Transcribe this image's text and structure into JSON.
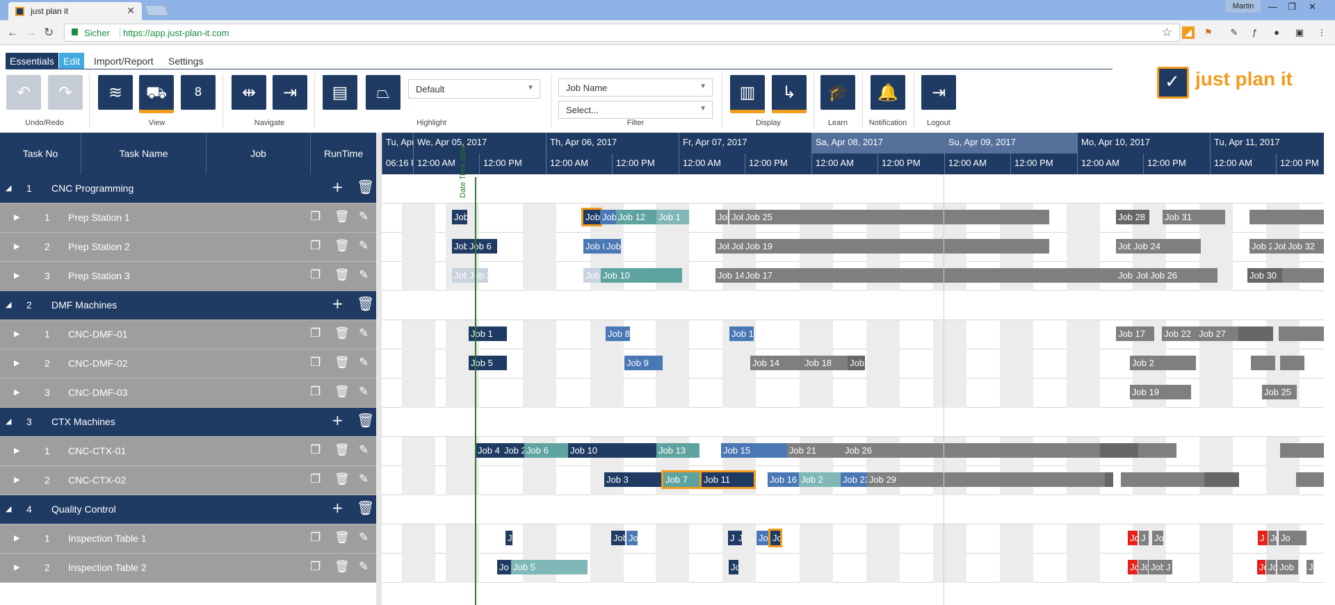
{
  "browser": {
    "tab_title": "just plan it",
    "user": "Martin",
    "secure_label": "Sicher",
    "url": "https://app.just-plan-it.com"
  },
  "menu": {
    "items": [
      "Essentials",
      "Edit",
      "Import/Report",
      "Settings"
    ]
  },
  "ribbon": {
    "groups": {
      "undo_redo": "Undo/Redo",
      "view": "View",
      "navigate": "Navigate",
      "highlight": "Highlight",
      "filter": "Filter",
      "display": "Display",
      "learn": "Learn",
      "notification": "Notification",
      "logout": "Logout"
    },
    "highlight_value": "Default",
    "filter_field": "Job Name",
    "filter_value": "Select...",
    "calendar_day": "8"
  },
  "logo": {
    "text": "just plan it"
  },
  "grid": {
    "columns": [
      "Task No",
      "Task Name",
      "Job",
      "RunTime"
    ],
    "now_label": "Date Time Now",
    "days": [
      {
        "label": "Tu, Apr"
      },
      {
        "label": "We, Apr 05, 2017"
      },
      {
        "label": "Th, Apr 06, 2017"
      },
      {
        "label": "Fr, Apr 07, 2017"
      },
      {
        "label": "Sa, Apr 08, 2017"
      },
      {
        "label": "Su, Apr 09, 2017"
      },
      {
        "label": "Mo, Apr 10, 2017"
      },
      {
        "label": "Tu, Apr 11, 2017"
      }
    ],
    "hours": [
      "06:16 P",
      "12:00 AM",
      "12:00 PM",
      "12:00 AM",
      "12:00 PM",
      "12:00 AM",
      "12:00 PM",
      "12:00 AM",
      "12:00 PM",
      "12:00 AM",
      "12:00 PM",
      "12:00 AM",
      "12:00 PM",
      "12:00 AM",
      "12:00 PM"
    ],
    "rows": [
      {
        "type": "group",
        "no": "1",
        "name": "CNC Programming"
      },
      {
        "type": "child",
        "no": "1",
        "name": "Prep Station 1"
      },
      {
        "type": "child",
        "no": "2",
        "name": "Prep Station 2"
      },
      {
        "type": "child",
        "no": "3",
        "name": "Prep Station 3"
      },
      {
        "type": "group",
        "no": "2",
        "name": "DMF Machines"
      },
      {
        "type": "child",
        "no": "1",
        "name": "CNC-DMF-01"
      },
      {
        "type": "child",
        "no": "2",
        "name": "CNC-DMF-02"
      },
      {
        "type": "child",
        "no": "3",
        "name": "CNC-DMF-03"
      },
      {
        "type": "group",
        "no": "3",
        "name": "CTX Machines"
      },
      {
        "type": "child",
        "no": "1",
        "name": "CNC-CTX-01"
      },
      {
        "type": "child",
        "no": "2",
        "name": "CNC-CTX-02"
      },
      {
        "type": "group",
        "no": "4",
        "name": "Quality Control"
      },
      {
        "type": "child",
        "no": "1",
        "name": "Inspection Table 1"
      },
      {
        "type": "child",
        "no": "2",
        "name": "Inspection Table 2"
      }
    ],
    "jobs": {
      "r1": [
        "Job 4",
        "Job",
        "Job 9",
        "Job 12",
        "Job 1",
        "Job 18",
        "Job 22",
        "Job 25",
        "Job 28",
        "Job 31"
      ],
      "r2": [
        "Job",
        "Job 6",
        "Job 8",
        "Job",
        "Job",
        "Job 16",
        "Job 19",
        "Job 2",
        "Job 24",
        "Job 2",
        "Job",
        "Job 32"
      ],
      "r3": [
        "Job",
        "Job 2",
        "Job",
        "Job 10",
        "Job 14",
        "Job 17",
        "Job 20",
        "Job",
        "Job 26",
        "Job 30"
      ],
      "r5": [
        "Job 1",
        "Job 8",
        "Job 1",
        "Job 17",
        "Job 22",
        "Job 27"
      ],
      "r6": [
        "Job 5",
        "Job 9",
        "Job 14",
        "Job 18",
        "Job 2",
        "Job 2"
      ],
      "r7": [
        "Job 19",
        "Job 25"
      ],
      "r9": [
        "Job 4",
        "Job 2",
        "Job 6",
        "Job 10",
        "Job 13",
        "Job 15",
        "Job 21",
        "Job 26"
      ],
      "r10": [
        "Job 3",
        "Job 7",
        "Job 11",
        "Job 16",
        "Job 2",
        "Job 23",
        "Job 29"
      ],
      "r12": [
        "J",
        "Job",
        "Jo",
        "J",
        "Jo",
        "Jo",
        "Jo",
        "Jo",
        "J",
        "Jo",
        "J",
        "Jo",
        "Jo"
      ],
      "r13": [
        "Jo",
        "Job 5",
        "Jo",
        "Jo",
        "Jo",
        "Job",
        "J",
        "Jo",
        "Jo",
        "Job",
        "J"
      ]
    }
  },
  "colors": {
    "navy": "#1f3b63",
    "accent": "#f29b1d",
    "gray_row": "#9e9e9e",
    "job_blue": "#4a78b5",
    "job_teal": "#5fa3a0",
    "job_gray": "#7f7f7f",
    "job_red": "#e8201c",
    "now_line": "#2a7a2a"
  }
}
